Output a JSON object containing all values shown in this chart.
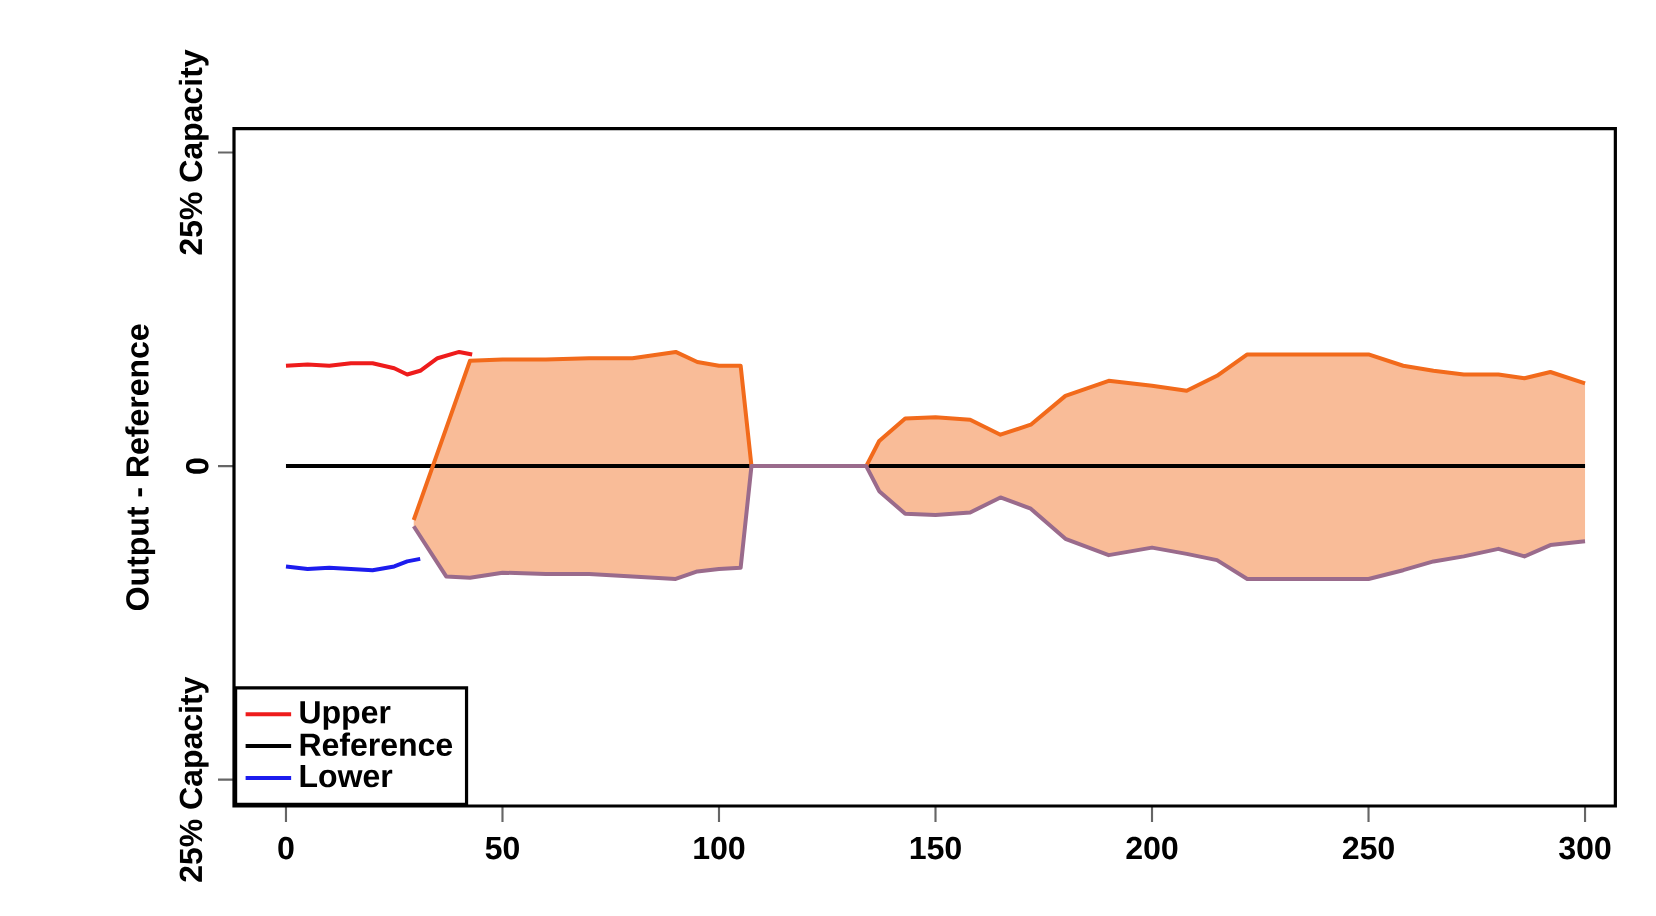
{
  "chart_data": {
    "type": "line",
    "ylabel": "Output - Reference",
    "xlim": [
      -12,
      307
    ],
    "xticks": [
      0,
      50,
      100,
      150,
      200,
      250,
      300
    ],
    "ylim": [
      -27.1,
      26.9
    ],
    "yticks": [
      {
        "value": 25,
        "label": "25% Capacity"
      },
      0,
      {
        "value": -25,
        "label": "25% Capacity"
      }
    ],
    "legend": "bottom left",
    "grid": false,
    "marker": "none",
    "line_style": "solid",
    "series": [
      {
        "name": "Upper",
        "color": "#ee1c1c",
        "x": [
          0,
          5,
          10,
          15,
          20,
          25,
          28,
          31,
          35,
          40,
          43
        ],
        "values": [
          8.0,
          8.1,
          8.0,
          8.2,
          8.2,
          7.8,
          7.3,
          7.6,
          8.6,
          9.1,
          8.9
        ]
      },
      {
        "name": "Reference",
        "color": "#000000",
        "x": [
          0,
          300
        ],
        "values": [
          0,
          0
        ]
      },
      {
        "name": "Lower",
        "color": "#1c1cee",
        "x": [
          0,
          5,
          10,
          15,
          20,
          25,
          28,
          31
        ],
        "values": [
          -8.0,
          -8.2,
          -8.1,
          -8.2,
          -8.3,
          -8.0,
          -7.6,
          -7.4
        ]
      },
      {
        "color": "#f26a1b",
        "x": [
          29.5,
          37,
          42.5,
          50,
          60,
          70,
          80,
          90,
          95,
          100,
          105,
          107.5,
          134,
          137,
          143,
          150,
          158,
          165,
          172,
          180,
          190,
          200,
          208,
          215,
          222,
          250,
          258,
          265,
          272,
          280,
          286,
          292,
          300
        ],
        "values": [
          -4.3,
          3.0,
          8.4,
          8.5,
          8.5,
          8.6,
          8.6,
          9.1,
          8.3,
          8.0,
          8.0,
          0,
          0,
          2.0,
          3.8,
          3.9,
          3.7,
          2.5,
          3.3,
          5.6,
          6.8,
          6.4,
          6.0,
          7.2,
          8.9,
          8.9,
          8.0,
          7.6,
          7.3,
          7.3,
          7.0,
          7.5,
          6.6
        ],
        "upper": [
          -4.3,
          3.0,
          8.4,
          8.5,
          8.5,
          8.6,
          8.6,
          9.1,
          8.3,
          8.0,
          8.0,
          0,
          0,
          2.0,
          3.8,
          3.9,
          3.7,
          2.5,
          3.3,
          5.6,
          6.8,
          6.4,
          6.0,
          7.2,
          8.9,
          8.9,
          8.0,
          7.6,
          7.3,
          7.3,
          7.0,
          7.5,
          6.6
        ],
        "lower": [
          -4.8,
          -8.8,
          -8.9,
          -8.5,
          -8.6,
          -8.6,
          -8.8,
          -9.0,
          -8.4,
          -8.2,
          -8.1,
          0,
          0,
          -2.0,
          -3.8,
          -3.9,
          -3.7,
          -2.5,
          -3.4,
          -5.8,
          -7.1,
          -6.5,
          -7.0,
          -7.5,
          -9.0,
          -9.0,
          -8.3,
          -7.6,
          -7.2,
          -6.6,
          -7.2,
          -6.3,
          -6.0
        ]
      },
      {
        "color": "#9a6b8c",
        "x": [
          29.5,
          37,
          42.5,
          50,
          60,
          70,
          80,
          90,
          95,
          100,
          105,
          107.5,
          134,
          137,
          143,
          150,
          158,
          165,
          172,
          180,
          190,
          200,
          208,
          215,
          222,
          250,
          258,
          265,
          272,
          280,
          286,
          292,
          300
        ],
        "values": [
          -4.8,
          -8.8,
          -8.9,
          -8.5,
          -8.6,
          -8.6,
          -8.8,
          -9.0,
          -8.4,
          -8.2,
          -8.1,
          0,
          0,
          -2.0,
          -3.8,
          -3.9,
          -3.7,
          -2.5,
          -3.4,
          -5.8,
          -7.1,
          -6.5,
          -7.0,
          -7.5,
          -9.0,
          -9.0,
          -8.3,
          -7.6,
          -7.2,
          -6.6,
          -7.2,
          -6.3,
          -6.0
        ]
      }
    ]
  }
}
